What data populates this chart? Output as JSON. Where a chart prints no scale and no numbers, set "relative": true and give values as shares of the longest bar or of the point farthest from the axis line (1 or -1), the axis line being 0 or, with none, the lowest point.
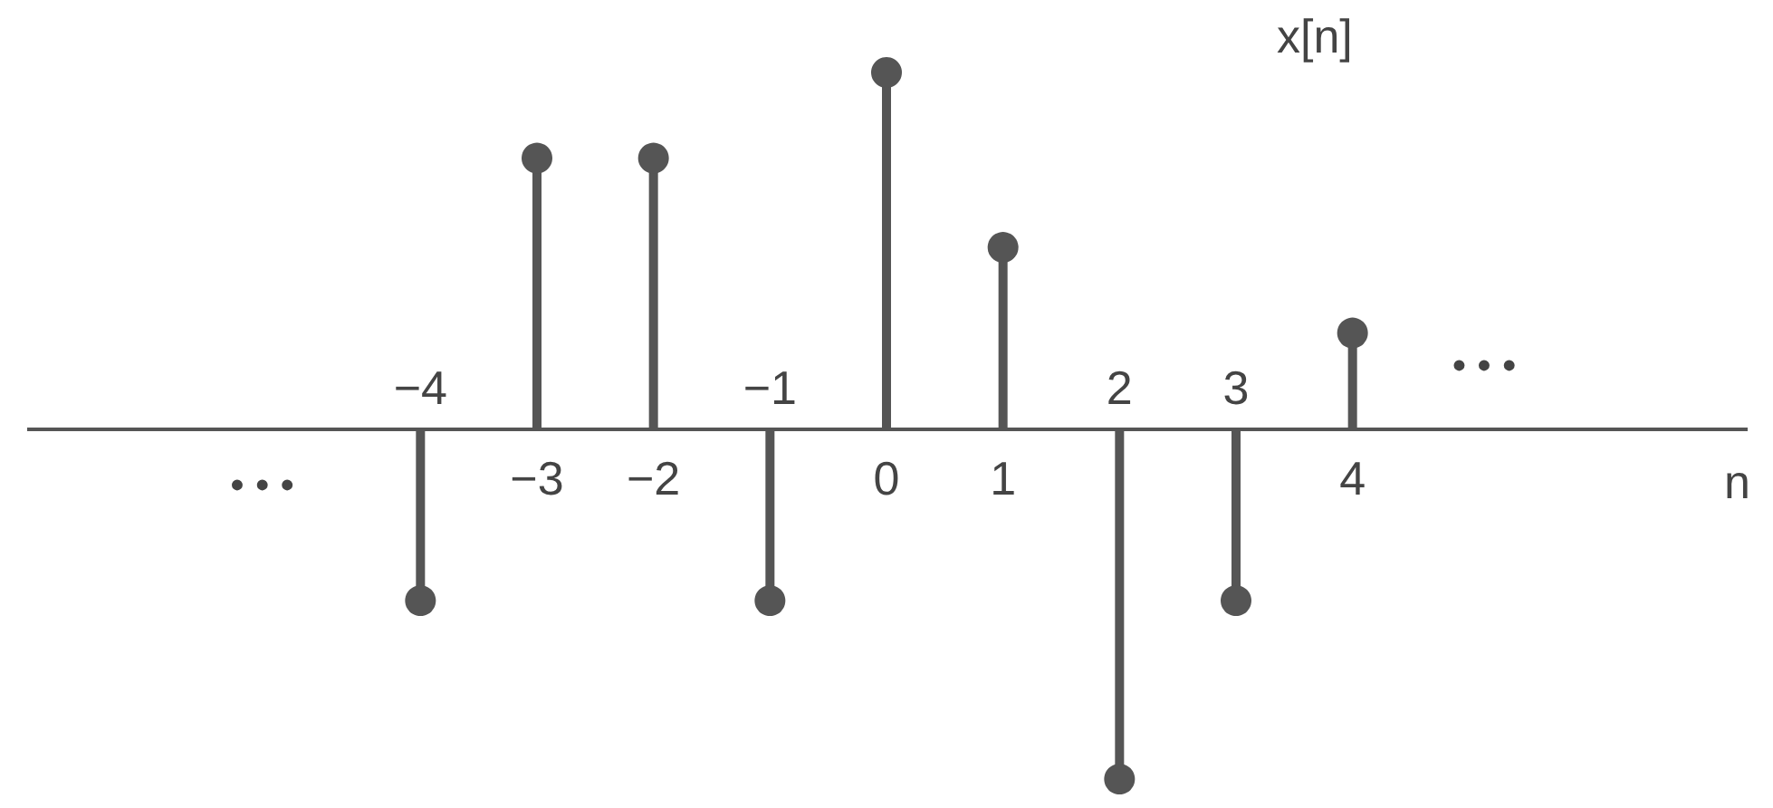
{
  "chart_data": {
    "type": "lollipop",
    "title": "x[n]",
    "annotations": [
      "• • •",
      "• • •",
      "n"
    ],
    "categories": [
      "−4",
      "−3",
      "−2",
      "−1",
      "0",
      "1",
      "2",
      "3",
      "4"
    ],
    "values": [
      -0.48,
      0.76,
      0.76,
      -0.48,
      1,
      0.51,
      -0.98,
      -0.48,
      0.27
    ],
    "color": "#555555",
    "relative": true,
    "marker": "circle"
  }
}
